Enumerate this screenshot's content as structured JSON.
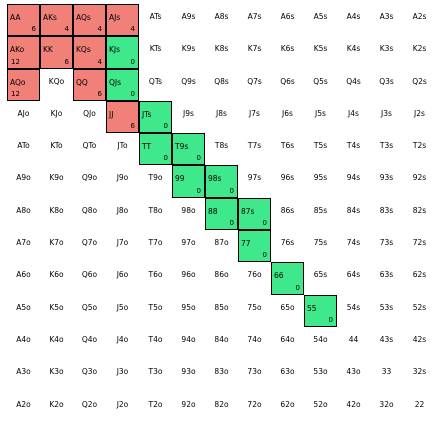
{
  "colors": {
    "raise": "#f08078",
    "call": "#3fe88a"
  },
  "ranks": [
    "A",
    "K",
    "Q",
    "J",
    "T",
    "9",
    "8",
    "7",
    "6",
    "5",
    "4",
    "3",
    "2"
  ],
  "matrix": [
    [
      {
        "h": "AA",
        "c": "6",
        "s": "red"
      },
      {
        "h": "AKs",
        "c": "4",
        "s": "red"
      },
      {
        "h": "AQs",
        "c": "4",
        "s": "red"
      },
      {
        "h": "AJs",
        "c": "4",
        "s": "red"
      },
      {
        "h": "ATs"
      },
      {
        "h": "A9s"
      },
      {
        "h": "A8s"
      },
      {
        "h": "A7s"
      },
      {
        "h": "A6s"
      },
      {
        "h": "A5s"
      },
      {
        "h": "A4s"
      },
      {
        "h": "A3s"
      },
      {
        "h": "A2s"
      }
    ],
    [
      {
        "h": "AKo",
        "c": "12",
        "s": "red",
        "cl": true
      },
      {
        "h": "KK",
        "c": "6",
        "s": "red"
      },
      {
        "h": "KQs",
        "c": "4",
        "s": "red"
      },
      {
        "h": "KJs",
        "c": "0",
        "s": "green"
      },
      {
        "h": "KTs"
      },
      {
        "h": "K9s"
      },
      {
        "h": "K8s"
      },
      {
        "h": "K7s"
      },
      {
        "h": "K6s"
      },
      {
        "h": "K5s"
      },
      {
        "h": "K4s"
      },
      {
        "h": "K3s"
      },
      {
        "h": "K2s"
      }
    ],
    [
      {
        "h": "AQo",
        "c": "12",
        "s": "red",
        "cl": true
      },
      {
        "h": "KQo"
      },
      {
        "h": "QQ",
        "c": "6",
        "s": "red"
      },
      {
        "h": "QJs",
        "c": "0",
        "s": "green"
      },
      {
        "h": "QTs"
      },
      {
        "h": "Q9s"
      },
      {
        "h": "Q8s"
      },
      {
        "h": "Q7s"
      },
      {
        "h": "Q6s"
      },
      {
        "h": "Q5s"
      },
      {
        "h": "Q4s"
      },
      {
        "h": "Q3s"
      },
      {
        "h": "Q2s"
      }
    ],
    [
      {
        "h": "AJo"
      },
      {
        "h": "KJo"
      },
      {
        "h": "QJo"
      },
      {
        "h": "JJ",
        "c": "6",
        "s": "red"
      },
      {
        "h": "JTs",
        "c": "0",
        "s": "green"
      },
      {
        "h": "J9s"
      },
      {
        "h": "J8s"
      },
      {
        "h": "J7s"
      },
      {
        "h": "J6s"
      },
      {
        "h": "J5s"
      },
      {
        "h": "J4s"
      },
      {
        "h": "J3s"
      },
      {
        "h": "J2s"
      }
    ],
    [
      {
        "h": "ATo"
      },
      {
        "h": "KTo"
      },
      {
        "h": "QTo"
      },
      {
        "h": "JTo"
      },
      {
        "h": "TT",
        "c": "0",
        "s": "green"
      },
      {
        "h": "T9s",
        "c": "0",
        "s": "green"
      },
      {
        "h": "T8s"
      },
      {
        "h": "T7s"
      },
      {
        "h": "T6s"
      },
      {
        "h": "T5s"
      },
      {
        "h": "T4s"
      },
      {
        "h": "T3s"
      },
      {
        "h": "T2s"
      }
    ],
    [
      {
        "h": "A9o"
      },
      {
        "h": "K9o"
      },
      {
        "h": "Q9o"
      },
      {
        "h": "J9o"
      },
      {
        "h": "T9o"
      },
      {
        "h": "99",
        "c": "0",
        "s": "green"
      },
      {
        "h": "98s",
        "c": "0",
        "s": "green"
      },
      {
        "h": "97s"
      },
      {
        "h": "96s"
      },
      {
        "h": "95s"
      },
      {
        "h": "94s"
      },
      {
        "h": "93s"
      },
      {
        "h": "92s"
      }
    ],
    [
      {
        "h": "A8o"
      },
      {
        "h": "K8o"
      },
      {
        "h": "Q8o"
      },
      {
        "h": "J8o"
      },
      {
        "h": "T8o"
      },
      {
        "h": "98o"
      },
      {
        "h": "88",
        "c": "0",
        "s": "green"
      },
      {
        "h": "87s",
        "c": "0",
        "s": "green"
      },
      {
        "h": "86s"
      },
      {
        "h": "85s"
      },
      {
        "h": "84s"
      },
      {
        "h": "83s"
      },
      {
        "h": "82s"
      }
    ],
    [
      {
        "h": "A7o"
      },
      {
        "h": "K7o"
      },
      {
        "h": "Q7o"
      },
      {
        "h": "J7o"
      },
      {
        "h": "T7o"
      },
      {
        "h": "97o"
      },
      {
        "h": "87o"
      },
      {
        "h": "77",
        "c": "0",
        "s": "green"
      },
      {
        "h": "76s"
      },
      {
        "h": "75s"
      },
      {
        "h": "74s"
      },
      {
        "h": "73s"
      },
      {
        "h": "72s"
      }
    ],
    [
      {
        "h": "A6o"
      },
      {
        "h": "K6o"
      },
      {
        "h": "Q6o"
      },
      {
        "h": "J6o"
      },
      {
        "h": "T6o"
      },
      {
        "h": "96o"
      },
      {
        "h": "86o"
      },
      {
        "h": "76o"
      },
      {
        "h": "66",
        "c": "0",
        "s": "green"
      },
      {
        "h": "65s"
      },
      {
        "h": "64s"
      },
      {
        "h": "63s"
      },
      {
        "h": "62s"
      }
    ],
    [
      {
        "h": "A5o"
      },
      {
        "h": "K5o"
      },
      {
        "h": "Q5o"
      },
      {
        "h": "J5o"
      },
      {
        "h": "T5o"
      },
      {
        "h": "95o"
      },
      {
        "h": "85o"
      },
      {
        "h": "75o"
      },
      {
        "h": "65o"
      },
      {
        "h": "55",
        "c": "0",
        "s": "green"
      },
      {
        "h": "54s"
      },
      {
        "h": "53s"
      },
      {
        "h": "52s"
      }
    ],
    [
      {
        "h": "A4o"
      },
      {
        "h": "K4o"
      },
      {
        "h": "Q4o"
      },
      {
        "h": "J4o"
      },
      {
        "h": "T4o"
      },
      {
        "h": "94o"
      },
      {
        "h": "84o"
      },
      {
        "h": "74o"
      },
      {
        "h": "64o"
      },
      {
        "h": "54o"
      },
      {
        "h": "44"
      },
      {
        "h": "43s"
      },
      {
        "h": "42s"
      }
    ],
    [
      {
        "h": "A3o"
      },
      {
        "h": "K3o"
      },
      {
        "h": "Q3o"
      },
      {
        "h": "J3o"
      },
      {
        "h": "T3o"
      },
      {
        "h": "93o"
      },
      {
        "h": "83o"
      },
      {
        "h": "73o"
      },
      {
        "h": "63o"
      },
      {
        "h": "53o"
      },
      {
        "h": "43o"
      },
      {
        "h": "33"
      },
      {
        "h": "32s"
      }
    ],
    [
      {
        "h": "A2o"
      },
      {
        "h": "K2o"
      },
      {
        "h": "Q2o"
      },
      {
        "h": "J2o"
      },
      {
        "h": "T2o"
      },
      {
        "h": "92o"
      },
      {
        "h": "82o"
      },
      {
        "h": "72o"
      },
      {
        "h": "62o"
      },
      {
        "h": "52o"
      },
      {
        "h": "42o"
      },
      {
        "h": "32o"
      },
      {
        "h": "22"
      }
    ]
  ]
}
